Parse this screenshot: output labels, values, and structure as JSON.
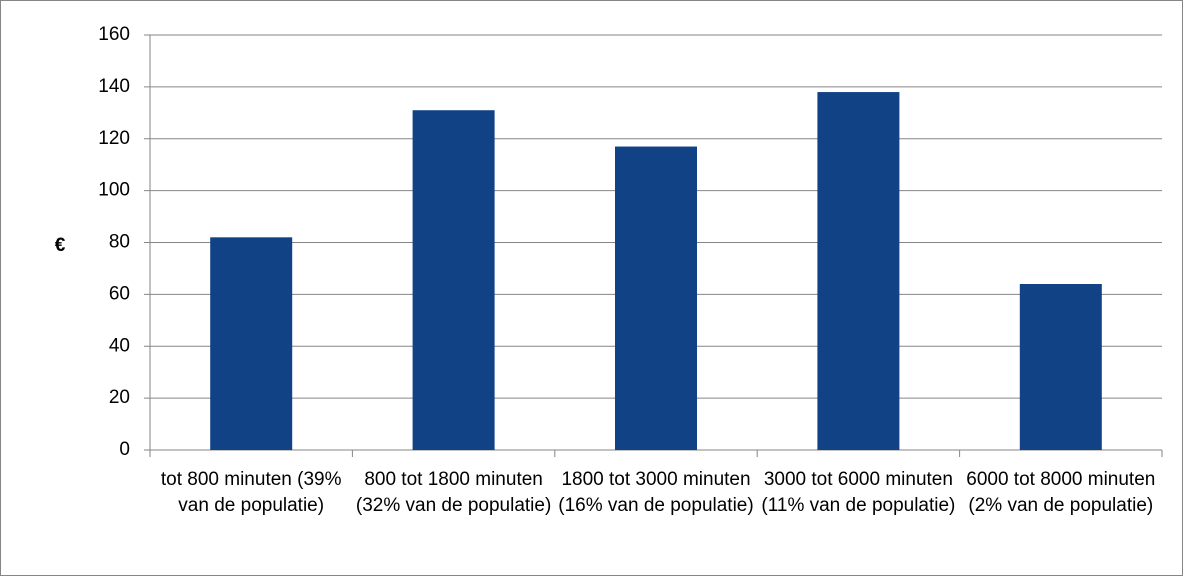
{
  "chart_data": {
    "type": "bar",
    "y_label": "€",
    "categories": [
      "tot 800 minuten (39% van de populatie)",
      "800 tot 1800 minuten (32% van de populatie)",
      "1800 tot 3000 minuten (16% van de populatie)",
      "3000 tot 6000 minuten (11% van de populatie)",
      "6000 tot 8000 minuten (2% van de populatie)"
    ],
    "values": [
      82,
      131,
      117,
      138,
      64
    ],
    "color": "#124286",
    "ylim": [
      0,
      160
    ],
    "yticks": [
      0,
      20,
      40,
      60,
      80,
      100,
      120,
      140,
      160
    ],
    "grid": true
  }
}
